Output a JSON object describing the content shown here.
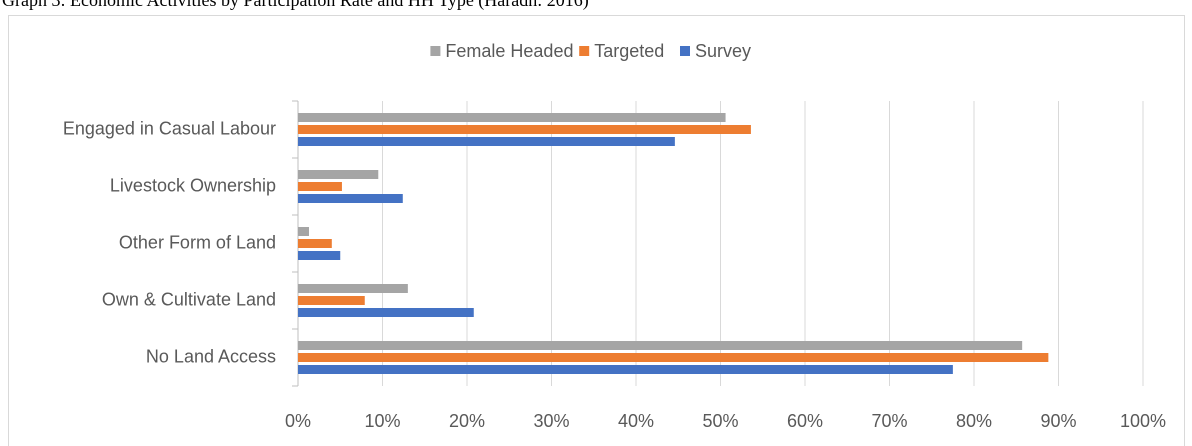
{
  "chart_data": {
    "type": "hbar",
    "title": "Graph 3: Economic Activities by Participation Rate and HH Type (Haradh: 2016)",
    "categories": [
      "Engaged in Casual Labour",
      "Livestock Ownership",
      "Other Form of Land",
      "Own & Cultivate Land",
      "No Land Access"
    ],
    "series": [
      {
        "name": "Female Headed",
        "color": "#a5a5a5",
        "values": [
          50.6,
          9.5,
          1.3,
          13.0,
          85.7
        ]
      },
      {
        "name": "Targeted",
        "color": "#ed7d31",
        "values": [
          53.6,
          5.2,
          4.0,
          7.9,
          88.8
        ]
      },
      {
        "name": "Survey",
        "color": "#4472c4",
        "values": [
          44.6,
          12.4,
          5.0,
          20.8,
          77.5
        ]
      }
    ],
    "xlim": [
      0,
      100
    ],
    "xticks": [
      {
        "value": 0,
        "label": "0%"
      },
      {
        "value": 10,
        "label": "10%"
      },
      {
        "value": 20,
        "label": "20%"
      },
      {
        "value": 30,
        "label": "30%"
      },
      {
        "value": 40,
        "label": "40%"
      },
      {
        "value": 50,
        "label": "50%"
      },
      {
        "value": 60,
        "label": "60%"
      },
      {
        "value": 70,
        "label": "70%"
      },
      {
        "value": 80,
        "label": "80%"
      },
      {
        "value": 90,
        "label": "90%"
      },
      {
        "value": 100,
        "label": "100%"
      }
    ],
    "grid": true,
    "legend": "top"
  }
}
